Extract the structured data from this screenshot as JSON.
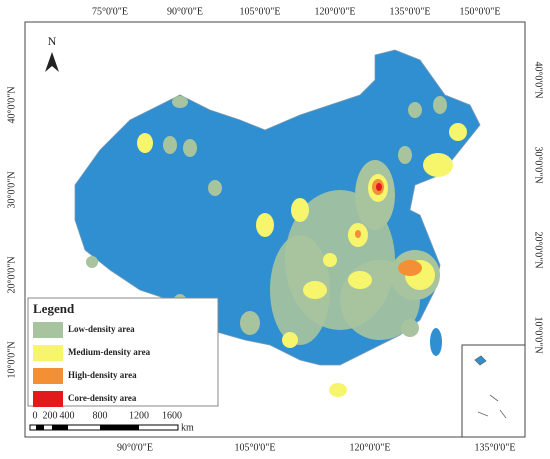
{
  "north": "N",
  "top_labels": [
    "75°0'0\"E",
    "90°0'0\"E",
    "105°0'0\"E",
    "120°0'0\"E",
    "135°0'0\"E",
    "150°0'0\"E"
  ],
  "bottom_labels": [
    "90°0'0\"E",
    "105°0'0\"E",
    "120°0'0\"E",
    "135°0'0\"E"
  ],
  "left_labels": [
    "40°0'0\"N",
    "30°0'0\"N",
    "20°0'0\"N",
    "10°0'0\"N"
  ],
  "right_labels": [
    "40°0'0\"N",
    "30°0'0\"N",
    "20°0'0\"N",
    "10°0'0\"N"
  ],
  "legend": {
    "title": "Legend",
    "items": [
      {
        "label": "Low-density area",
        "color": "#a8c49e"
      },
      {
        "label": "Medium-density area",
        "color": "#f7f56c"
      },
      {
        "label": "High-density area",
        "color": "#f39035"
      },
      {
        "label": "Core-density area",
        "color": "#e31a1c"
      }
    ]
  },
  "scale": {
    "labels": [
      "0",
      "200",
      "400",
      "800",
      "1200",
      "1600"
    ],
    "unit": "km"
  }
}
